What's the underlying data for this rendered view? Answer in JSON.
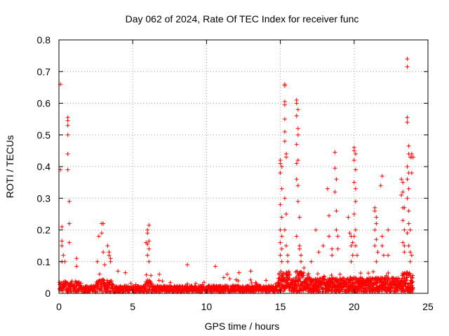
{
  "chart_data": {
    "type": "scatter",
    "title": "Day 062 of 2024, Rate Of TEC Index for receiver func",
    "xlabel": "GPS time / hours",
    "ylabel": "ROTI / TECUs",
    "xlim": [
      0,
      25
    ],
    "ylim": [
      0,
      0.8
    ],
    "xticks": [
      "0",
      "5",
      "10",
      "15",
      "20",
      "25"
    ],
    "yticks": [
      "0",
      "0.1",
      "0.2",
      "0.3",
      "0.4",
      "0.5",
      "0.6",
      "0.7",
      "0.8"
    ],
    "grid": true,
    "marker": "plus",
    "color": "#ff0000",
    "series": [
      {
        "name": "ROTI",
        "points": [
          [
            0.1,
            0.66
          ],
          [
            0.1,
            0.39
          ],
          [
            0.2,
            0.21
          ],
          [
            0.2,
            0.165
          ],
          [
            0.2,
            0.15
          ],
          [
            0.3,
            0.12
          ],
          [
            0.2,
            0.1
          ],
          [
            0.4,
            0.1
          ],
          [
            0.6,
            0.555
          ],
          [
            0.6,
            0.545
          ],
          [
            0.6,
            0.53
          ],
          [
            0.6,
            0.5
          ],
          [
            0.6,
            0.44
          ],
          [
            0.6,
            0.39
          ],
          [
            0.7,
            0.29
          ],
          [
            0.7,
            0.22
          ],
          [
            0.7,
            0.16
          ],
          [
            1.2,
            0.11
          ],
          [
            1.2,
            0.085
          ],
          [
            2.6,
            0.1
          ],
          [
            2.7,
            0.18
          ],
          [
            2.9,
            0.22
          ],
          [
            3.0,
            0.22
          ],
          [
            2.9,
            0.19
          ],
          [
            3.0,
            0.13
          ],
          [
            3.1,
            0.09
          ],
          [
            3.3,
            0.15
          ],
          [
            3.4,
            0.13
          ],
          [
            3.4,
            0.12
          ],
          [
            3.5,
            0.11
          ],
          [
            3.5,
            0.1
          ],
          [
            4.0,
            0.07
          ],
          [
            4.5,
            0.065
          ],
          [
            5.9,
            0.16
          ],
          [
            6.0,
            0.2
          ],
          [
            6.1,
            0.215
          ],
          [
            6.0,
            0.19
          ],
          [
            6.1,
            0.165
          ],
          [
            6.0,
            0.155
          ],
          [
            6.1,
            0.14
          ],
          [
            6.0,
            0.12
          ],
          [
            6.1,
            0.1
          ],
          [
            6.8,
            0.06
          ],
          [
            8.7,
            0.09
          ],
          [
            10.6,
            0.085
          ],
          [
            11.4,
            0.06
          ],
          [
            12.2,
            0.065
          ],
          [
            13.0,
            0.07
          ],
          [
            15.0,
            0.42
          ],
          [
            15.0,
            0.41
          ],
          [
            15.1,
            0.4
          ],
          [
            15.0,
            0.38
          ],
          [
            15.1,
            0.33
          ],
          [
            15.0,
            0.28
          ],
          [
            15.1,
            0.24
          ],
          [
            15.0,
            0.2
          ],
          [
            15.1,
            0.18
          ],
          [
            15.0,
            0.16
          ],
          [
            15.1,
            0.14
          ],
          [
            15.0,
            0.12
          ],
          [
            15.1,
            0.1
          ],
          [
            15.3,
            0.66
          ],
          [
            15.3,
            0.655
          ],
          [
            15.3,
            0.605
          ],
          [
            15.3,
            0.595
          ],
          [
            15.3,
            0.55
          ],
          [
            15.3,
            0.51
          ],
          [
            15.3,
            0.48
          ],
          [
            15.4,
            0.44
          ],
          [
            15.4,
            0.43
          ],
          [
            15.3,
            0.3
          ],
          [
            15.4,
            0.25
          ],
          [
            15.3,
            0.2
          ],
          [
            15.4,
            0.15
          ],
          [
            15.5,
            0.12
          ],
          [
            15.5,
            0.1
          ],
          [
            16.1,
            0.61
          ],
          [
            16.1,
            0.6
          ],
          [
            16.2,
            0.58
          ],
          [
            16.1,
            0.56
          ],
          [
            16.2,
            0.52
          ],
          [
            16.2,
            0.5
          ],
          [
            16.1,
            0.47
          ],
          [
            16.2,
            0.42
          ],
          [
            16.1,
            0.41
          ],
          [
            16.1,
            0.36
          ],
          [
            16.2,
            0.34
          ],
          [
            16.2,
            0.29
          ],
          [
            16.3,
            0.24
          ],
          [
            16.1,
            0.18
          ],
          [
            16.3,
            0.15
          ],
          [
            16.3,
            0.14
          ],
          [
            16.4,
            0.12
          ],
          [
            16.4,
            0.1
          ],
          [
            16.6,
            0.08
          ],
          [
            17.1,
            0.1
          ],
          [
            17.4,
            0.2
          ],
          [
            17.6,
            0.13
          ],
          [
            17.9,
            0.15
          ],
          [
            18.2,
            0.33
          ],
          [
            18.3,
            0.245
          ],
          [
            18.3,
            0.18
          ],
          [
            18.5,
            0.14
          ],
          [
            18.5,
            0.12
          ],
          [
            18.7,
            0.445
          ],
          [
            18.7,
            0.395
          ],
          [
            18.8,
            0.36
          ],
          [
            18.7,
            0.32
          ],
          [
            18.8,
            0.26
          ],
          [
            18.8,
            0.2
          ],
          [
            18.9,
            0.18
          ],
          [
            18.9,
            0.14
          ],
          [
            19.6,
            0.24
          ],
          [
            19.7,
            0.19
          ],
          [
            19.8,
            0.18
          ],
          [
            19.8,
            0.15
          ],
          [
            19.9,
            0.16
          ],
          [
            19.9,
            0.12
          ],
          [
            19.8,
            0.1
          ],
          [
            20.0,
            0.46
          ],
          [
            20.0,
            0.45
          ],
          [
            20.1,
            0.44
          ],
          [
            20.0,
            0.42
          ],
          [
            20.1,
            0.39
          ],
          [
            20.0,
            0.35
          ],
          [
            20.1,
            0.33
          ],
          [
            20.1,
            0.29
          ],
          [
            20.0,
            0.25
          ],
          [
            20.1,
            0.2
          ],
          [
            20.0,
            0.18
          ],
          [
            20.1,
            0.15
          ],
          [
            20.2,
            0.12
          ],
          [
            21.4,
            0.27
          ],
          [
            21.4,
            0.26
          ],
          [
            21.5,
            0.24
          ],
          [
            21.5,
            0.22
          ],
          [
            21.4,
            0.2
          ],
          [
            21.5,
            0.17
          ],
          [
            21.4,
            0.15
          ],
          [
            21.6,
            0.13
          ],
          [
            21.5,
            0.1
          ],
          [
            21.9,
            0.37
          ],
          [
            21.8,
            0.34
          ],
          [
            21.9,
            0.18
          ],
          [
            21.9,
            0.15
          ],
          [
            22.0,
            0.12
          ],
          [
            22.3,
            0.2
          ],
          [
            22.3,
            0.12
          ],
          [
            23.2,
            0.36
          ],
          [
            23.3,
            0.35
          ],
          [
            23.3,
            0.32
          ],
          [
            23.2,
            0.31
          ],
          [
            23.3,
            0.27
          ],
          [
            23.4,
            0.27
          ],
          [
            23.3,
            0.23
          ],
          [
            23.4,
            0.2
          ],
          [
            23.3,
            0.16
          ],
          [
            23.4,
            0.15
          ],
          [
            23.4,
            0.13
          ],
          [
            23.6,
            0.74
          ],
          [
            23.6,
            0.715
          ],
          [
            23.6,
            0.555
          ],
          [
            23.6,
            0.54
          ],
          [
            23.7,
            0.465
          ],
          [
            23.7,
            0.44
          ],
          [
            23.8,
            0.43
          ],
          [
            23.6,
            0.4
          ],
          [
            23.7,
            0.38
          ],
          [
            23.6,
            0.36
          ],
          [
            23.7,
            0.33
          ],
          [
            23.6,
            0.3
          ],
          [
            23.7,
            0.26
          ],
          [
            23.7,
            0.22
          ],
          [
            23.8,
            0.2
          ],
          [
            23.6,
            0.19
          ],
          [
            23.7,
            0.15
          ],
          [
            23.8,
            0.13
          ],
          [
            23.9,
            0.12
          ],
          [
            23.8,
            0.1
          ],
          [
            23.9,
            0.44
          ],
          [
            23.9,
            0.43
          ],
          [
            24.0,
            0.43
          ],
          [
            23.9,
            0.38
          ]
        ]
      }
    ]
  }
}
